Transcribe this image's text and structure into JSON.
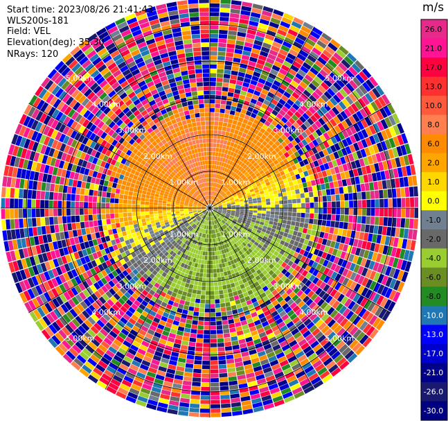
{
  "header": {
    "start_time": "Start time: 2023/08/26 21:41:43",
    "instrument": "WLS200s-181",
    "field": "Field: VEL",
    "elevation": "Elevation(deg): 35.30",
    "nrays": "NRays: 120"
  },
  "colorbar": {
    "unit": "m/s",
    "ticks": [
      "26.0",
      "21.0",
      "17.0",
      "13.0",
      "10.0",
      "8.0",
      "6.0",
      "2.0",
      "1.0",
      "0.0",
      "-1.0",
      "-2.0",
      "-4.0",
      "-6.0",
      "-8.0",
      "-10.0",
      "-13.0",
      "-17.0",
      "-21.0",
      "-26.0",
      "-30.0"
    ],
    "colors": [
      "#e7298a",
      "#ff1493",
      "#ff0040",
      "#ff3030",
      "#ff5a3c",
      "#ff7f50",
      "#ff8c00",
      "#ffa500",
      "#ffd700",
      "#ffff00",
      "#708090",
      "#696969",
      "#9acd32",
      "#6b8e23",
      "#228b22",
      "#1f77b4",
      "#0000ff",
      "#0000cd",
      "#00008b",
      "#191970",
      "#000080"
    ]
  },
  "chart_data": {
    "type": "heatmap",
    "projection": "polar PPI",
    "field": "VEL",
    "units": "m/s",
    "nrays": 120,
    "range_rings_km": [
      1.0,
      2.0,
      3.0,
      4.0,
      5.0
    ],
    "ring_labels": [
      "1.00km",
      "2.00km",
      "3.00km",
      "4.00km",
      "5.00km"
    ],
    "vmin": -30.0,
    "vmax": 26.0,
    "pattern": {
      "north_sector": "positive (1 to 8 m/s, yellow-orange)",
      "south_sector": "negative (-2 to -10 m/s, green-blue)",
      "east_sector": "near zero / slightly negative (grey-green)",
      "west_sector": "near zero / slightly positive (yellow)",
      "beyond_about_2.5km": "noise across full colour range"
    }
  }
}
